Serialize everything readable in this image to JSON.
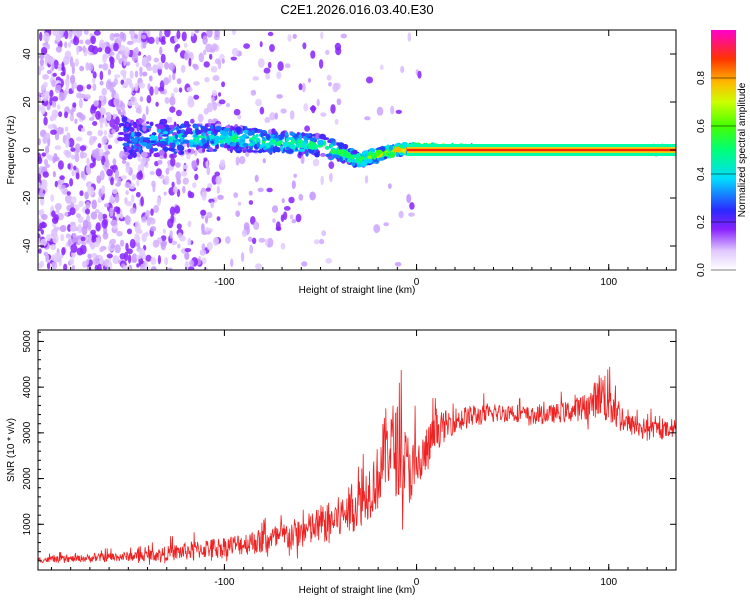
{
  "title": "C2E1.2026.016.03.40.E30",
  "colors": {
    "snr_line": "#ee2222",
    "ridge": "#ff2200",
    "axis": "#000000"
  },
  "chart_data": [
    {
      "type": "heatmap",
      "xlabel": "Height of straight line (km)",
      "ylabel": "Frequency (Hz)",
      "xlim": [
        -197,
        135
      ],
      "ylim": [
        -50,
        50
      ],
      "xticks": [
        -100,
        0,
        100
      ],
      "yticks": [
        -40,
        -20,
        0,
        20,
        40
      ],
      "xtick_labels": [
        "-100",
        "0",
        "100"
      ],
      "ytick_labels": [
        "-40",
        "-20",
        "0",
        "20",
        "40"
      ],
      "colorbar": {
        "label": "Normalized spectral amplitude",
        "range": [
          0,
          1
        ],
        "ticks": [
          0.0,
          0.2,
          0.4,
          0.6,
          0.8
        ],
        "tick_labels": [
          "0.0",
          "0.2",
          "0.4",
          "0.6",
          "0.8"
        ]
      },
      "description_points": [
        {
          "x": -197,
          "f_center": 0,
          "f_spread": 50,
          "amp": 0.15
        },
        {
          "x": -150,
          "f_center": 5,
          "f_spread": 8,
          "amp": 0.3
        },
        {
          "x": -100,
          "f_center": 5,
          "f_spread": 5,
          "amp": 0.45
        },
        {
          "x": -50,
          "f_center": 2,
          "f_spread": 4,
          "amp": 0.5
        },
        {
          "x": -30,
          "f_center": -4,
          "f_spread": 3,
          "amp": 0.55
        },
        {
          "x": -10,
          "f_center": 0,
          "f_spread": 2,
          "amp": 0.8
        },
        {
          "x": 0,
          "f_center": 1,
          "f_spread": 1.5,
          "amp": 0.9
        },
        {
          "x": 50,
          "f_center": 0,
          "f_spread": 1,
          "amp": 1.0
        },
        {
          "x": 100,
          "f_center": 0,
          "f_spread": 1,
          "amp": 1.0
        },
        {
          "x": 135,
          "f_center": 0,
          "f_spread": 1.5,
          "amp": 0.85
        }
      ]
    },
    {
      "type": "line",
      "xlabel": "Height of straight line (km)",
      "ylabel": "SNR (10 * v/v)",
      "xlim": [
        -197,
        135
      ],
      "ylim": [
        0,
        5250
      ],
      "xticks": [
        -100,
        0,
        100
      ],
      "yticks": [
        1000,
        2000,
        3000,
        4000,
        5000
      ],
      "xtick_labels": [
        "-100",
        "0",
        "100"
      ],
      "ytick_labels": [
        "1000",
        "2000",
        "3000",
        "4000",
        "5000"
      ],
      "series": [
        {
          "name": "SNR",
          "x": [
            -197,
            -180,
            -160,
            -140,
            -120,
            -100,
            -80,
            -60,
            -40,
            -30,
            -20,
            -15,
            -10,
            -5,
            0,
            10,
            20,
            30,
            40,
            50,
            60,
            70,
            80,
            90,
            95,
            100,
            105,
            110,
            120,
            130,
            135
          ],
          "values": [
            200,
            220,
            250,
            280,
            350,
            450,
            550,
            700,
            1000,
            1300,
            1800,
            2500,
            2300,
            2000,
            1900,
            2900,
            3200,
            3300,
            3350,
            3400,
            3300,
            3350,
            3400,
            3500,
            3700,
            3600,
            3300,
            3100,
            3050,
            3000,
            3150
          ],
          "noise": [
            80,
            90,
            120,
            150,
            250,
            280,
            350,
            450,
            600,
            700,
            900,
            1200,
            1300,
            1000,
            900,
            500,
            350,
            300,
            250,
            250,
            250,
            250,
            300,
            400,
            600,
            900,
            500,
            300,
            250,
            250,
            200
          ]
        }
      ]
    }
  ]
}
